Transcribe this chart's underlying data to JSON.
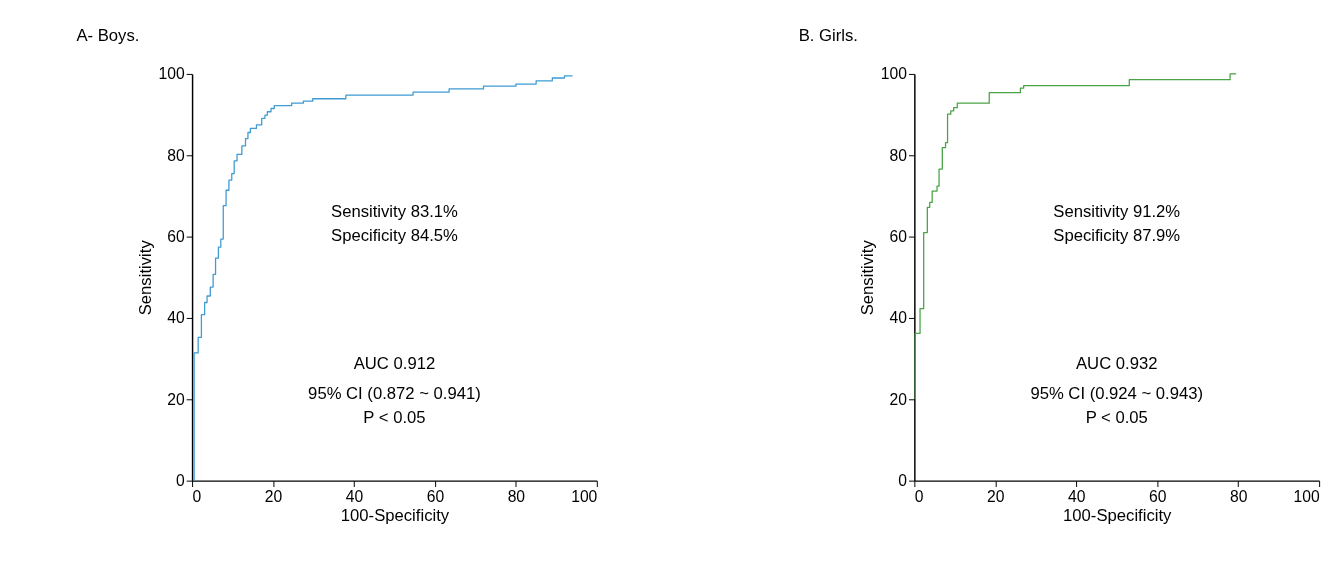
{
  "chart_data": [
    {
      "type": "line",
      "title": "A- Boys.",
      "xlabel": "100-Specificity",
      "ylabel": "Sensitivity",
      "xlim": [
        0,
        100
      ],
      "ylim": [
        0,
        100
      ],
      "xticks": [
        0,
        20,
        40,
        60,
        80,
        100
      ],
      "yticks": [
        0,
        20,
        40,
        60,
        80,
        100
      ],
      "grid": false,
      "legend": false,
      "marker": "none",
      "line_style": "solid",
      "annotations": [
        "Sensitivity 83.1%",
        "Specificity 84.5%",
        "AUC 0.912",
        "95% CI (0.872 ~ 0.941)",
        "P < 0.05"
      ],
      "series": [
        {
          "color": "#3f9bd3",
          "x": [
            0.5,
            0.5,
            1.5,
            1.5,
            2.3,
            2.3,
            3.1,
            3.1,
            3.7,
            3.7,
            4.5,
            4.5,
            5.2,
            5.2,
            5.8,
            5.8,
            6.5,
            6.5,
            7.1,
            7.1,
            7.7,
            7.7,
            8.4,
            8.4,
            9.1,
            9.1,
            9.8,
            9.8,
            10.4,
            10.4,
            11.1,
            11.1,
            12.3,
            12.3,
            13.2,
            13.2,
            13.8,
            13.8,
            14.4,
            14.4,
            15.9,
            15.9,
            17.2,
            17.2,
            18,
            18,
            18.6,
            18.6,
            19.5,
            19.5,
            20.3,
            20.3,
            24.6,
            24.6,
            27.5,
            27.5,
            29.8,
            29.8,
            38,
            38,
            54.6,
            54.6,
            63.5,
            63.5,
            72,
            72,
            80,
            80,
            85,
            85,
            89,
            89,
            92,
            92,
            94
          ],
          "values": [
            0,
            31.4,
            31.4,
            35.2,
            35.2,
            40.8,
            40.8,
            43.8,
            43.8,
            45.4,
            45.4,
            47.6,
            47.6,
            50.7,
            50.7,
            54.7,
            54.7,
            57.4,
            57.4,
            59.4,
            59.4,
            67.6,
            67.6,
            71.4,
            71.4,
            73.9,
            73.9,
            75.5,
            75.5,
            78.6,
            78.6,
            80.2,
            80.2,
            82.3,
            82.3,
            84.1,
            84.1,
            85.6,
            85.6,
            86.6,
            86.6,
            87.5,
            87.5,
            89.1,
            89.1,
            89.9,
            89.9,
            90.7,
            90.7,
            91.5,
            91.5,
            92.2,
            92.2,
            92.8,
            92.8,
            93.3,
            93.3,
            93.9,
            93.9,
            94.8,
            94.8,
            95.5,
            95.5,
            96.3,
            96.3,
            97,
            97,
            97.5,
            97.5,
            98.3,
            98.3,
            99,
            99,
            99.5,
            99.5
          ]
        }
      ]
    },
    {
      "type": "line",
      "title": "B. Girls.",
      "xlabel": "100-Specificity",
      "ylabel": "Sensitivity",
      "xlim": [
        0,
        100
      ],
      "ylim": [
        0,
        100
      ],
      "xticks": [
        0,
        20,
        40,
        60,
        80,
        100
      ],
      "yticks": [
        0,
        20,
        40,
        60,
        80,
        100
      ],
      "grid": false,
      "legend": false,
      "marker": "none",
      "line_style": "solid",
      "annotations": [
        "Sensitivity 91.2%",
        "Specificity 87.9%",
        "AUC 0.932",
        "95% CI (0.924 ~ 0.943)",
        "P < 0.05"
      ],
      "series": [
        {
          "color": "#4aa346",
          "x": [
            0.2,
            0.2,
            1.4,
            1.4,
            2.3,
            2.3,
            3.2,
            3.2,
            3.8,
            3.8,
            4.4,
            4.4,
            5.6,
            5.6,
            6.1,
            6.1,
            6.9,
            6.9,
            7.7,
            7.7,
            8.2,
            8.2,
            9,
            9,
            9.7,
            9.7,
            10.6,
            10.6,
            18.5,
            18.5,
            26.2,
            26.2,
            27,
            27,
            53.1,
            53.1,
            78,
            78,
            79.5
          ],
          "values": [
            20,
            36.2,
            36.2,
            42.3,
            42.3,
            61,
            61,
            67.2,
            67.2,
            68.4,
            68.4,
            71.2,
            71.2,
            72.4,
            72.4,
            76.6,
            76.6,
            81.9,
            81.9,
            83.1,
            83.1,
            90.1,
            90.1,
            90.9,
            90.9,
            91.7,
            91.7,
            92.8,
            92.8,
            95.4,
            95.4,
            96.5,
            96.5,
            97.1,
            97.1,
            98.6,
            98.6,
            100,
            100
          ]
        }
      ]
    }
  ]
}
